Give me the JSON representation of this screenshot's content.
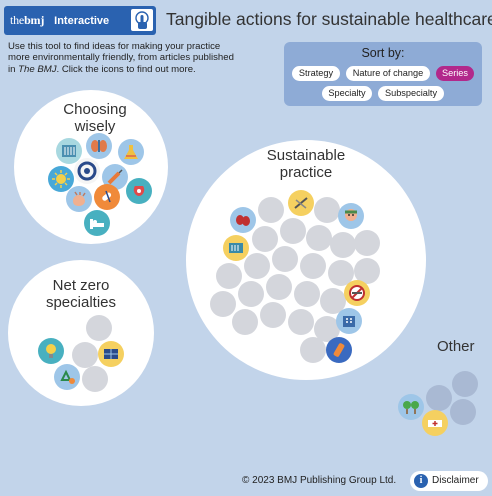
{
  "header": {
    "brand_prefix": "the",
    "brand_name": "bmj",
    "interactive_label": "Interactive",
    "title": "Tangible actions for sustainable healthcare"
  },
  "intro": {
    "line1": "Use this tool to find ideas for making your practice",
    "line2": "more environmentally friendly, from articles published",
    "line3_prefix": "in ",
    "line3_em": "The BMJ",
    "line3_suffix": ". Click the icons to find out more."
  },
  "sort": {
    "label": "Sort by:",
    "options": [
      {
        "label": "Strategy",
        "active": false
      },
      {
        "label": "Nature of change",
        "active": false
      },
      {
        "label": "Series",
        "active": true
      },
      {
        "label": "Specialty",
        "active": false
      },
      {
        "label": "Subspecialty",
        "active": false
      }
    ],
    "active_color": "#b2288b"
  },
  "clusters": {
    "choosing_wisely": {
      "line1": "Choosing",
      "line2": "wisely"
    },
    "sustainable_practice": {
      "line1": "Sustainable",
      "line2": "practice"
    },
    "net_zero": {
      "line1": "Net zero",
      "line2": "specialties"
    },
    "other": {
      "label": "Other"
    }
  },
  "icons": {
    "cw": [
      "xray-icon",
      "kidney-icon",
      "flask-icon",
      "sun-icon",
      "stethoscope-icon",
      "syringe-icon",
      "thyroid-icon",
      "hand-icon",
      "pills-icon",
      "stethoscope-icon",
      "hospital-bed-icon"
    ],
    "sp": [
      "kidneys-icon",
      "surgical-tool-icon",
      "doctor-icon",
      "xray-icon",
      "no-smoking-icon",
      "hospital-icon",
      "inhaler-icon"
    ],
    "nz": [
      "lightbulb-icon",
      "solar-panel-icon",
      "recycle-icon"
    ],
    "other": [
      "trees-icon",
      "ambulance-icon"
    ]
  },
  "footer": {
    "copyright": "© 2023 BMJ Publishing Group Ltd.",
    "disclaimer": "Disclaimer"
  },
  "colors": {
    "background": "#c2d4ea",
    "brand_blue": "#2a62b0",
    "sort_panel": "#8eabd6",
    "empty_dot": "#d4d6dc"
  }
}
